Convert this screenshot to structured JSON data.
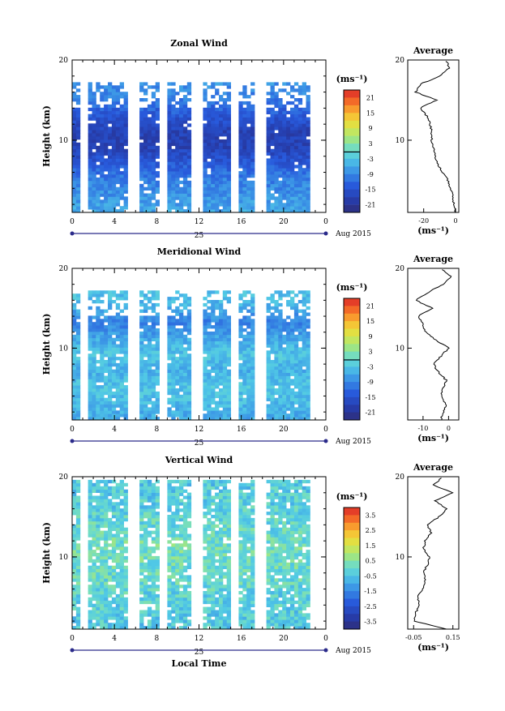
{
  "date_label": "Aug 2015",
  "day_label": "25",
  "xlabel": "Local Time",
  "ylabel": "Height (km)",
  "unit": "(ms⁻¹)",
  "avg_title": "Average",
  "panels": [
    {
      "title": "Zonal Wind",
      "colorbar_ticks": [
        "21",
        "15",
        "9",
        "3",
        "-3",
        "-9",
        "-15",
        "-21"
      ],
      "avg_xticks": [
        "-20",
        "0"
      ]
    },
    {
      "title": "Meridional Wind",
      "colorbar_ticks": [
        "21",
        "15",
        "9",
        "3",
        "-3",
        "-9",
        "-15",
        "-21"
      ],
      "avg_xticks": [
        "-10",
        "0"
      ]
    },
    {
      "title": "Vertical Wind",
      "colorbar_ticks": [
        "3.5",
        "2.5",
        "1.5",
        "0.5",
        "-0.5",
        "-1.5",
        "-2.5",
        "-3.5"
      ],
      "avg_xticks": [
        "-0.05",
        "0.15"
      ]
    }
  ],
  "chart_data": [
    {
      "type": "heatmap",
      "title": "Zonal Wind",
      "xlabel": "",
      "ylabel": "Height (km)",
      "x_ticks": [
        "0",
        "4",
        "8",
        "12",
        "16",
        "20",
        "0"
      ],
      "y_ticks": [
        "10",
        "20"
      ],
      "xlim": [
        0,
        24
      ],
      "ylim": [
        1,
        20
      ],
      "colorbar": {
        "unit": "(ms⁻¹)",
        "range": [
          -24,
          24
        ]
      },
      "profile_by_height": [
        [
          1,
          -6
        ],
        [
          3,
          -8
        ],
        [
          5,
          -10
        ],
        [
          7,
          -14
        ],
        [
          9,
          -18
        ],
        [
          11,
          -18
        ],
        [
          13,
          -14
        ],
        [
          15,
          -10
        ],
        [
          17,
          -8
        ],
        [
          19,
          -6
        ]
      ],
      "average": {
        "xlabel": "(ms⁻¹)",
        "xlim": [
          -30,
          2
        ],
        "x_ticks": [
          "-20",
          "0"
        ],
        "heights": [
          1,
          2,
          3,
          4,
          5,
          6,
          7,
          8,
          9,
          10,
          11,
          12,
          13,
          14,
          15,
          16,
          17,
          18,
          19,
          20
        ],
        "values": [
          0,
          -1,
          -2,
          -3,
          -5,
          -8,
          -11,
          -13,
          -14,
          -15,
          -15,
          -16,
          -18,
          -22,
          -12,
          -25,
          -22,
          -10,
          -4,
          -6
        ]
      }
    },
    {
      "type": "heatmap",
      "title": "Meridional Wind",
      "xlabel": "",
      "ylabel": "Height (km)",
      "x_ticks": [
        "0",
        "4",
        "8",
        "12",
        "16",
        "20",
        "0"
      ],
      "y_ticks": [
        "10",
        "20"
      ],
      "xlim": [
        0,
        24
      ],
      "ylim": [
        1,
        20
      ],
      "colorbar": {
        "unit": "(ms⁻¹)",
        "range": [
          -24,
          24
        ]
      },
      "profile_by_height": [
        [
          1,
          -6
        ],
        [
          3,
          -4
        ],
        [
          5,
          -3
        ],
        [
          7,
          -5
        ],
        [
          9,
          -3
        ],
        [
          11,
          -6
        ],
        [
          13,
          -10
        ],
        [
          15,
          -5
        ],
        [
          17,
          -3
        ],
        [
          19,
          -2
        ]
      ],
      "average": {
        "xlabel": "(ms⁻¹)",
        "xlim": [
          -16,
          4
        ],
        "x_ticks": [
          "-10",
          "0"
        ],
        "heights": [
          1,
          2,
          3,
          4,
          5,
          6,
          7,
          8,
          9,
          10,
          11,
          12,
          13,
          14,
          15,
          16,
          17,
          18,
          19,
          20
        ],
        "values": [
          -3,
          -2,
          -1,
          -3,
          -2,
          -1,
          -4,
          -6,
          -3,
          0,
          -5,
          -9,
          -10,
          -12,
          -6,
          -13,
          -8,
          -2,
          1,
          -3
        ]
      }
    },
    {
      "type": "heatmap",
      "title": "Vertical Wind",
      "xlabel": "Local Time",
      "ylabel": "Height (km)",
      "x_ticks": [
        "0",
        "4",
        "8",
        "12",
        "16",
        "20",
        "0"
      ],
      "y_ticks": [
        "10",
        "20"
      ],
      "xlim": [
        0,
        24
      ],
      "ylim": [
        1,
        20
      ],
      "colorbar": {
        "unit": "(ms⁻¹)",
        "range": [
          -4,
          4
        ]
      },
      "profile_by_height": [
        [
          1,
          -0.4
        ],
        [
          3,
          -0.3
        ],
        [
          5,
          -0.2
        ],
        [
          7,
          0.0
        ],
        [
          9,
          0.1
        ],
        [
          11,
          0.2
        ],
        [
          13,
          0.0
        ],
        [
          15,
          -0.2
        ],
        [
          17,
          -0.3
        ],
        [
          19,
          -0.4
        ]
      ],
      "average": {
        "xlabel": "(ms⁻¹)",
        "xlim": [
          -0.08,
          0.18
        ],
        "x_ticks": [
          "-0.05",
          "0.15"
        ],
        "heights": [
          1,
          2,
          3,
          4,
          5,
          6,
          7,
          8,
          9,
          10,
          11,
          12,
          13,
          14,
          15,
          16,
          17,
          18,
          19,
          20
        ],
        "values": [
          0.12,
          -0.05,
          -0.04,
          -0.02,
          -0.03,
          0.0,
          0.01,
          0.0,
          0.02,
          0.03,
          0.0,
          0.01,
          0.04,
          0.02,
          0.08,
          0.12,
          0.06,
          0.15,
          0.05,
          0.1
        ]
      }
    }
  ]
}
